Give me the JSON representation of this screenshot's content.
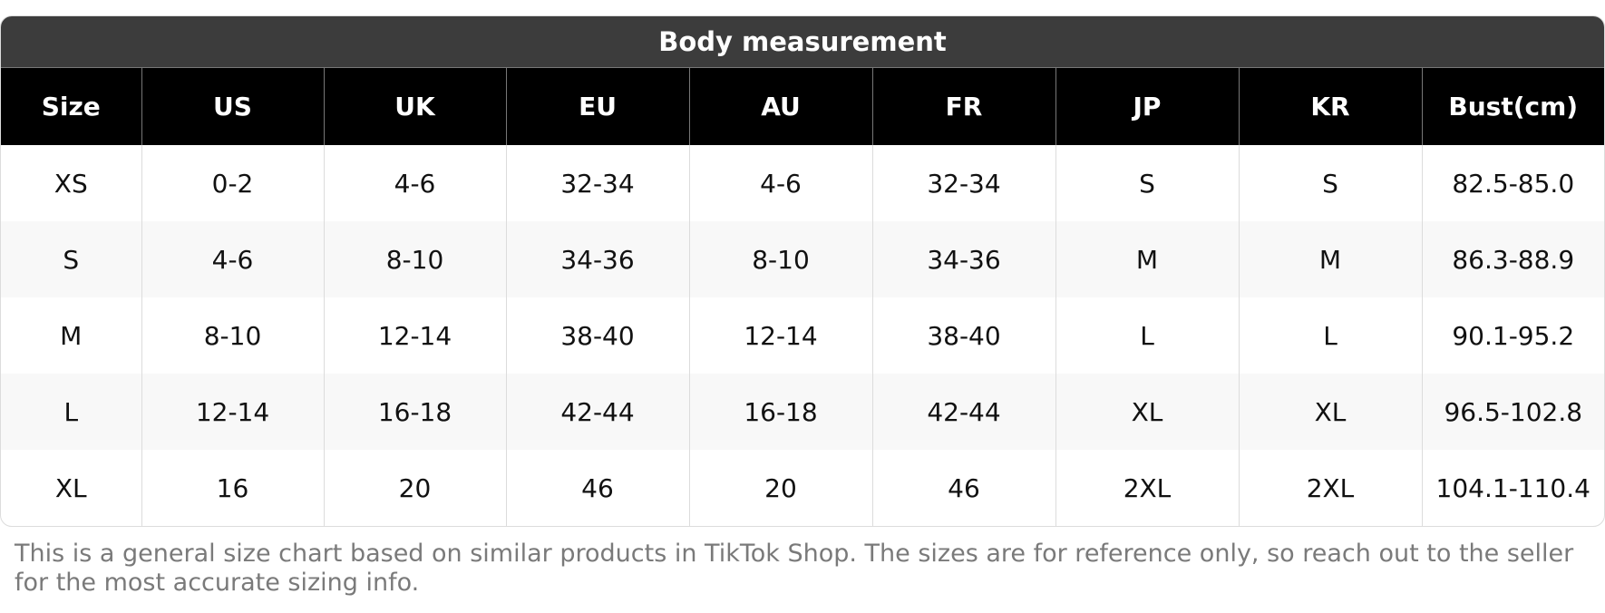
{
  "title": "Body measurement",
  "table": {
    "header": [
      "Size",
      "US",
      "UK",
      "EU",
      "AU",
      "FR",
      "JP",
      "KR",
      "Bust(cm)"
    ],
    "rows": [
      [
        "XS",
        "0-2",
        "4-6",
        "32-34",
        "4-6",
        "32-34",
        "S",
        "S",
        "82.5-85.0"
      ],
      [
        "S",
        "4-6",
        "8-10",
        "34-36",
        "8-10",
        "34-36",
        "M",
        "M",
        "86.3-88.9"
      ],
      [
        "M",
        "8-10",
        "12-14",
        "38-40",
        "12-14",
        "38-40",
        "L",
        "L",
        "90.1-95.2"
      ],
      [
        "L",
        "12-14",
        "16-18",
        "42-44",
        "16-18",
        "42-44",
        "XL",
        "XL",
        "96.5-102.8"
      ],
      [
        "XL",
        "16",
        "20",
        "46",
        "20",
        "46",
        "2XL",
        "2XL",
        "104.1-110.4"
      ]
    ]
  },
  "footnote": "This is a general size chart based on similar products in TikTok Shop. The sizes are for reference only, so reach out to the seller for the most accurate sizing info."
}
